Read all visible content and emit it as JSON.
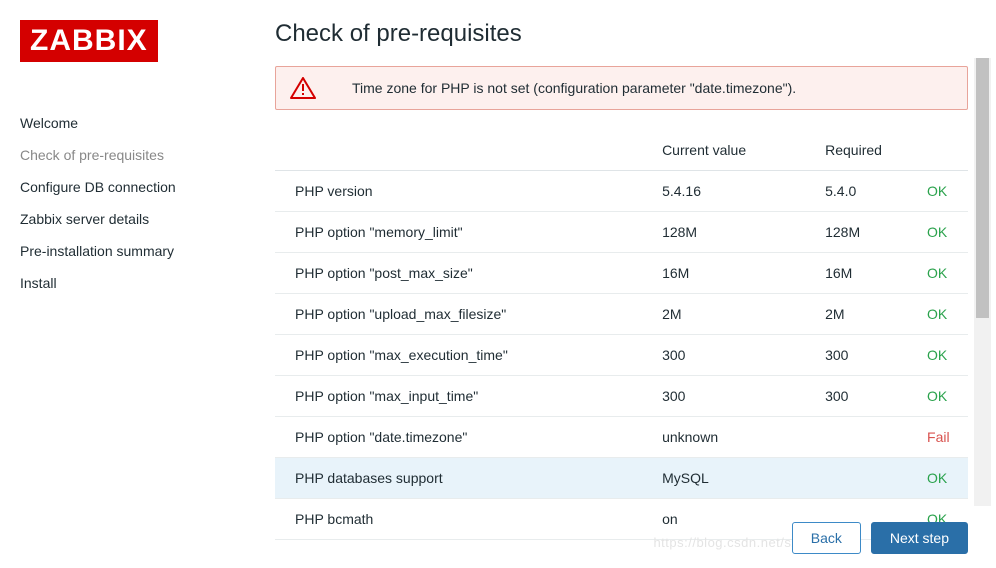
{
  "logo": "ZABBIX",
  "page_title": "Check of pre-requisites",
  "alert": {
    "message": "Time zone for PHP is not set (configuration parameter \"date.timezone\")."
  },
  "nav": [
    {
      "label": "Welcome",
      "active": false
    },
    {
      "label": "Check of pre-requisites",
      "active": true
    },
    {
      "label": "Configure DB connection",
      "active": false
    },
    {
      "label": "Zabbix server details",
      "active": false
    },
    {
      "label": "Pre-installation summary",
      "active": false
    },
    {
      "label": "Install",
      "active": false
    }
  ],
  "columns": {
    "current": "Current value",
    "required": "Required"
  },
  "rows": [
    {
      "name": "PHP version",
      "current": "5.4.16",
      "required": "5.4.0",
      "status": "OK",
      "ok": true
    },
    {
      "name": "PHP option \"memory_limit\"",
      "current": "128M",
      "required": "128M",
      "status": "OK",
      "ok": true
    },
    {
      "name": "PHP option \"post_max_size\"",
      "current": "16M",
      "required": "16M",
      "status": "OK",
      "ok": true
    },
    {
      "name": "PHP option \"upload_max_filesize\"",
      "current": "2M",
      "required": "2M",
      "status": "OK",
      "ok": true
    },
    {
      "name": "PHP option \"max_execution_time\"",
      "current": "300",
      "required": "300",
      "status": "OK",
      "ok": true
    },
    {
      "name": "PHP option \"max_input_time\"",
      "current": "300",
      "required": "300",
      "status": "OK",
      "ok": true
    },
    {
      "name": "PHP option \"date.timezone\"",
      "current": "unknown",
      "required": "",
      "status": "Fail",
      "ok": false
    },
    {
      "name": "PHP databases support",
      "current": "MySQL",
      "required": "",
      "status": "OK",
      "ok": true,
      "highlight": true
    },
    {
      "name": "PHP bcmath",
      "current": "on",
      "required": "",
      "status": "OK",
      "ok": true
    }
  ],
  "buttons": {
    "back": "Back",
    "next": "Next step"
  },
  "colors": {
    "brand_red": "#d40000",
    "ok_green": "#2aa24c",
    "fail_red": "#d9534f",
    "alert_bg": "#fdf0ee",
    "alert_border": "#e8a49a",
    "row_highlight": "#e8f3fa",
    "btn_primary": "#2a6fa8"
  },
  "watermark": "https://blog.csdn.net/szuwangjl"
}
